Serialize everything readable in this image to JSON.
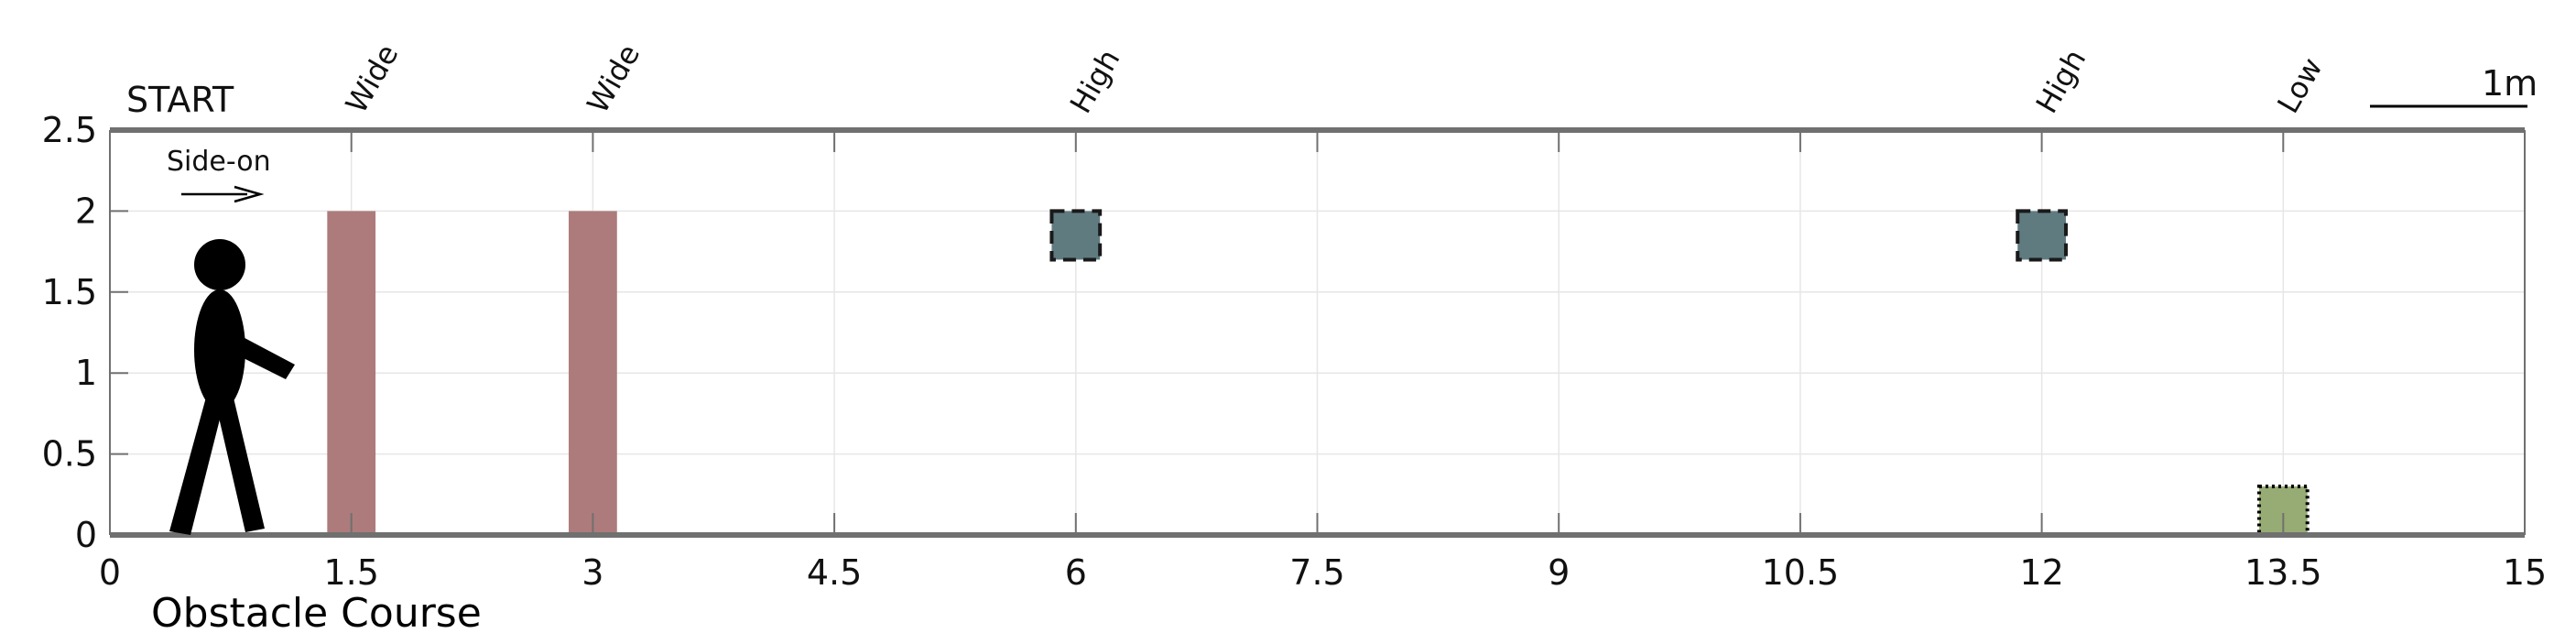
{
  "title": "Obstacle Course",
  "start_label": "START",
  "view_label": "Side-on",
  "scale_label": "1m",
  "x_ticks": [
    "0",
    "1.5",
    "3",
    "4.5",
    "6",
    "7.5",
    "9",
    "10.5",
    "12",
    "13.5",
    "15"
  ],
  "y_ticks": [
    "0",
    "0.5",
    "1",
    "1.5",
    "2",
    "2.5"
  ],
  "colors": {
    "wide": "#ad7b7b",
    "high": "#5f7b80",
    "low": "#97ac74",
    "axis": "#707070",
    "grid": "#e6e6e6",
    "figure": "#000000"
  },
  "chart_data": {
    "type": "diagram",
    "title": "Obstacle Course",
    "xlim": [
      0,
      15
    ],
    "ylim": [
      0,
      2.5
    ],
    "grid": true,
    "obstacles": [
      {
        "label": "Wide",
        "type": "wide",
        "x": 1.5,
        "y_min": 0,
        "y_max": 2,
        "half_width": 0.15
      },
      {
        "label": "Wide",
        "type": "wide",
        "x": 3,
        "y_min": 0,
        "y_max": 2,
        "half_width": 0.15
      },
      {
        "label": "High",
        "type": "high",
        "x": 6,
        "y_min": 1.7,
        "y_max": 2,
        "half_width": 0.15
      },
      {
        "label": "High",
        "type": "high",
        "x": 12,
        "y_min": 1.7,
        "y_max": 2,
        "half_width": 0.15
      },
      {
        "label": "Low",
        "type": "low",
        "x": 13.5,
        "y_min": 0,
        "y_max": 0.3,
        "half_width": 0.15
      }
    ]
  }
}
